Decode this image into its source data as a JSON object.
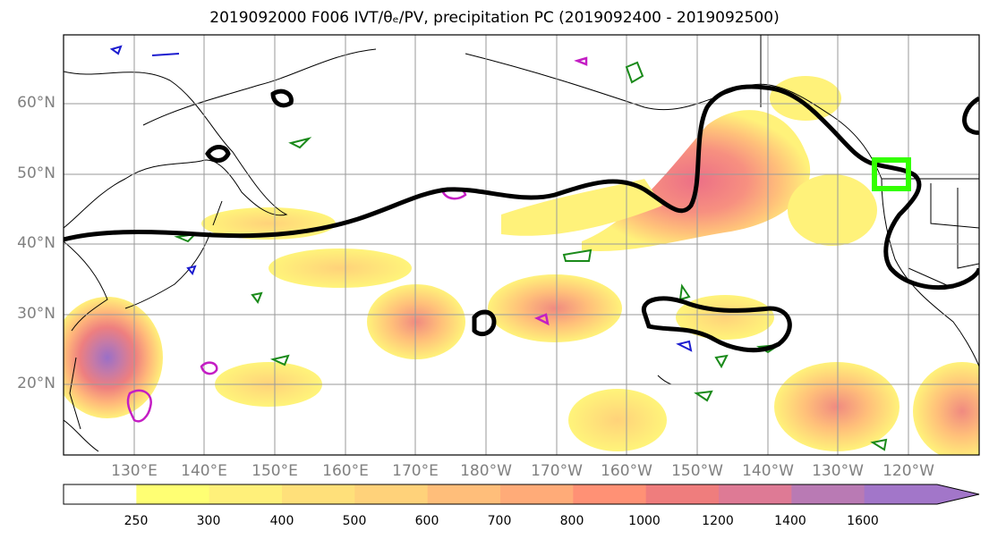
{
  "title": "2019092000 F006 IVT/θₑ/PV, precipitation PC (2019092400 - 2019092500)",
  "map": {
    "lat_labels": [
      "60°N",
      "50°N",
      "40°N",
      "30°N",
      "20°N"
    ],
    "lon_labels": [
      "130°E",
      "140°E",
      "150°E",
      "160°E",
      "170°E",
      "180°W",
      "170°W",
      "160°W",
      "150°W",
      "140°W",
      "130°W",
      "120°W"
    ]
  },
  "colorbar": {
    "levels": [
      "250",
      "300",
      "400",
      "500",
      "600",
      "700",
      "800",
      "1000",
      "1200",
      "1400",
      "1600"
    ],
    "colors": [
      "#ffff73",
      "#fff07a",
      "#ffe07a",
      "#ffd27a",
      "#ffbe7a",
      "#ffab78",
      "#ff9175",
      "#ef7d7d",
      "#de7a95",
      "#b97ab4",
      "#a276c9"
    ]
  },
  "box_color": "#33ff00"
}
